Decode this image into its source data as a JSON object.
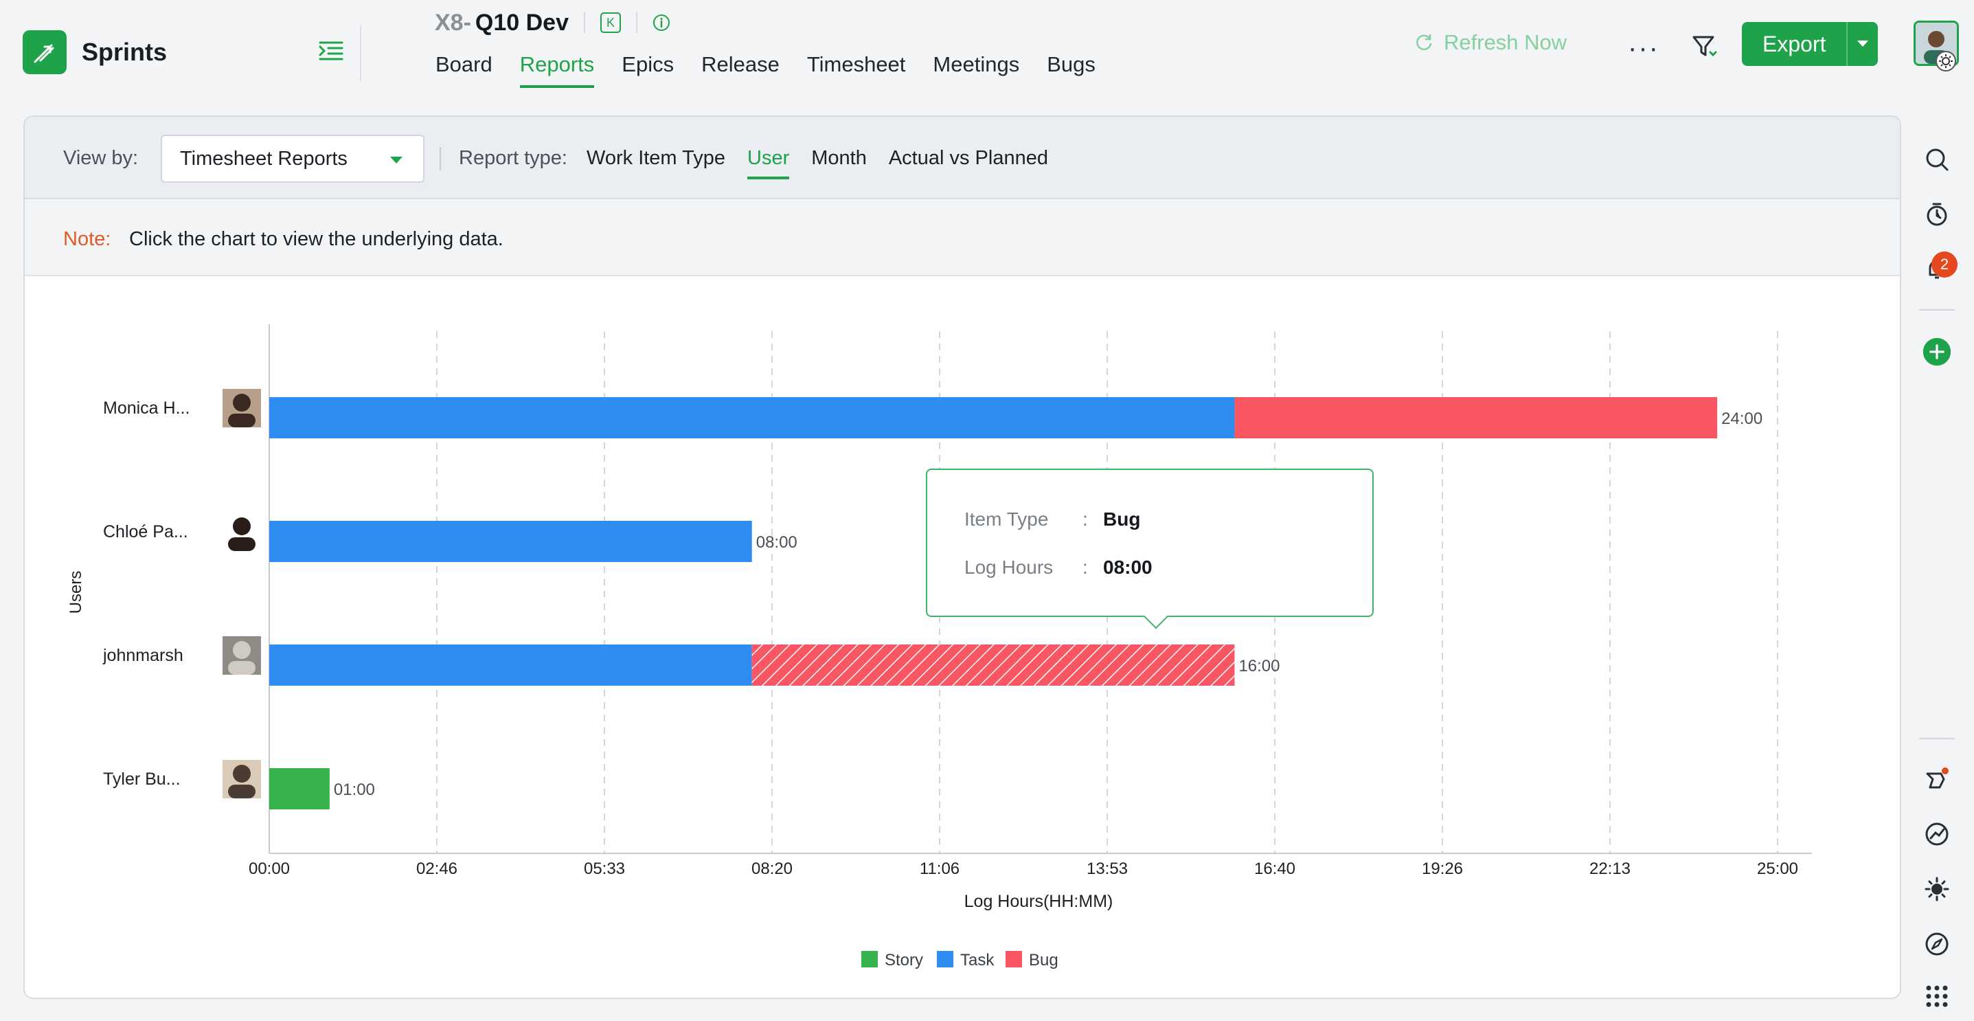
{
  "app": {
    "name": "Sprints"
  },
  "project": {
    "key": "X8-",
    "name": "Q10 Dev",
    "badge": "K"
  },
  "nav": {
    "tabs": [
      {
        "label": "Board"
      },
      {
        "label": "Reports",
        "active": true
      },
      {
        "label": "Epics"
      },
      {
        "label": "Release"
      },
      {
        "label": "Timesheet"
      },
      {
        "label": "Meetings"
      },
      {
        "label": "Bugs"
      }
    ]
  },
  "header": {
    "refresh_label": "Refresh Now",
    "more_label": "···",
    "export_label": "Export"
  },
  "rail": {
    "notification_count": "2"
  },
  "viewbar": {
    "view_by_label": "View by:",
    "view_by_value": "Timesheet Reports",
    "report_type_label": "Report type:",
    "report_types": [
      {
        "label": "Work Item Type"
      },
      {
        "label": "User",
        "active": true
      },
      {
        "label": "Month"
      },
      {
        "label": "Actual vs Planned"
      }
    ]
  },
  "note": {
    "label": "Note:",
    "text": "Click the chart to view the underlying data."
  },
  "tooltip": {
    "rows": [
      {
        "key": "Item Type",
        "value": "Bug"
      },
      {
        "key": "Log Hours",
        "value": "08:00"
      }
    ]
  },
  "colors": {
    "accent": "#1fa34a",
    "story": "#37b24d",
    "task": "#2f8cf0",
    "bug": "#fa5563"
  },
  "chart_data": {
    "type": "bar",
    "orientation": "horizontal",
    "stacked": true,
    "xlabel": "Log Hours(HH:MM)",
    "ylabel": "Users",
    "x_unit": "hours",
    "xlim": [
      0,
      25
    ],
    "x_ticks": [
      "00:00",
      "02:46",
      "05:33",
      "08:20",
      "11:06",
      "13:53",
      "16:40",
      "19:26",
      "22:13",
      "25:00"
    ],
    "categories": [
      "Monica H...",
      "Chloé Pa...",
      "johnmarsh",
      "Tyler Bu..."
    ],
    "series": [
      {
        "name": "Story",
        "color": "#37b24d",
        "values": [
          0,
          0,
          0,
          1
        ]
      },
      {
        "name": "Task",
        "color": "#2f8cf0",
        "values": [
          16,
          8,
          8,
          0
        ]
      },
      {
        "name": "Bug",
        "color": "#fa5563",
        "values": [
          8,
          0,
          8,
          0
        ]
      }
    ],
    "totals": [
      "24:00",
      "08:00",
      "16:00",
      "01:00"
    ],
    "highlighted": {
      "category": "johnmarsh",
      "series": "Bug"
    },
    "grid": "vertical-dashed",
    "legend": "bottom"
  }
}
